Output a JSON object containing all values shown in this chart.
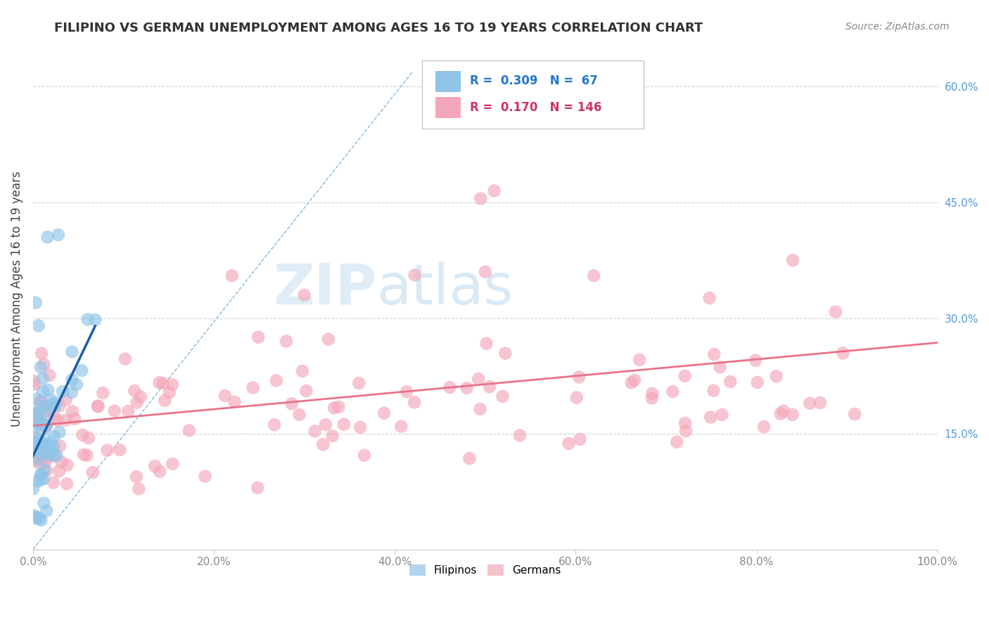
{
  "title": "FILIPINO VS GERMAN UNEMPLOYMENT AMONG AGES 16 TO 19 YEARS CORRELATION CHART",
  "source": "Source: ZipAtlas.com",
  "ylabel": "Unemployment Among Ages 16 to 19 years",
  "xlim": [
    0.0,
    1.0
  ],
  "ylim": [
    0.0,
    0.65
  ],
  "xticks": [
    0.0,
    0.2,
    0.4,
    0.6,
    0.8,
    1.0
  ],
  "xtick_labels": [
    "0.0%",
    "20.0%",
    "40.0%",
    "60.0%",
    "80.0%",
    "100.0%"
  ],
  "yticks": [
    0.15,
    0.3,
    0.45,
    0.6
  ],
  "ytick_labels": [
    "15.0%",
    "30.0%",
    "45.0%",
    "60.0%"
  ],
  "filipino_color": "#90c4e8",
  "german_color": "#f4a7b9",
  "filipino_R": 0.309,
  "filipino_N": 67,
  "german_R": 0.17,
  "german_N": 146,
  "filipino_line_color": "#1a5ea8",
  "german_line_color": "#e8728a",
  "ref_line_color": "#7ab0d8",
  "watermark_zip": "ZIP",
  "watermark_atlas": "atlas",
  "legend_labels": [
    "Filipinos",
    "Germans"
  ],
  "background_color": "#ffffff",
  "grid_color": "#d0d0d0",
  "title_color": "#333333",
  "source_color": "#888888",
  "ytick_color": "#5599dd",
  "xtick_color": "#888888"
}
